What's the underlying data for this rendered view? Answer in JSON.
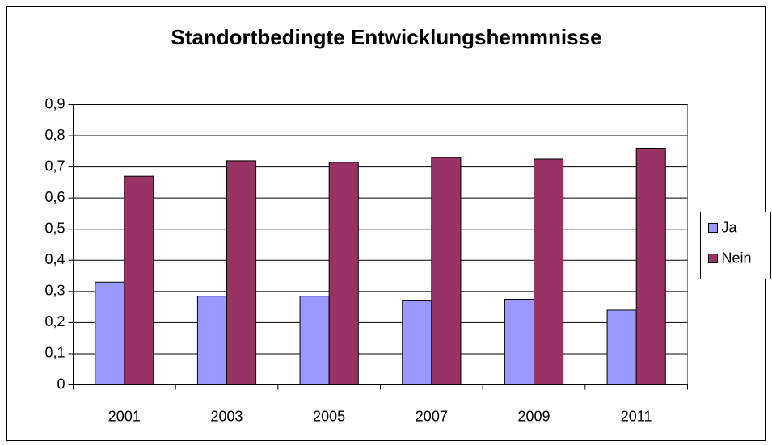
{
  "chart_data": {
    "type": "bar",
    "title": "Standortbedingte Entwicklungshemmnisse",
    "categories": [
      "2001",
      "2003",
      "2005",
      "2007",
      "2009",
      "2011"
    ],
    "series": [
      {
        "name": "Ja",
        "color": "#9999ff",
        "values": [
          0.33,
          0.285,
          0.285,
          0.27,
          0.275,
          0.24
        ]
      },
      {
        "name": "Nein",
        "color": "#993366",
        "values": [
          0.67,
          0.72,
          0.715,
          0.73,
          0.725,
          0.76
        ]
      }
    ],
    "ylim": [
      0,
      0.9
    ],
    "yticks": [
      0,
      {
        "value": 0.1,
        "label": "0,1"
      },
      {
        "value": 0.2,
        "label": "0,2"
      },
      {
        "value": 0.3,
        "label": "0,3"
      },
      {
        "value": 0.4,
        "label": "0,4"
      },
      {
        "value": 0.5,
        "label": "0,5"
      },
      {
        "value": 0.6,
        "label": "0,6"
      },
      {
        "value": 0.7,
        "label": "0,7"
      },
      {
        "value": 0.8,
        "label": "0,8"
      },
      {
        "value": 0.9,
        "label": "0,9"
      }
    ],
    "grid": true,
    "legend": "right"
  }
}
